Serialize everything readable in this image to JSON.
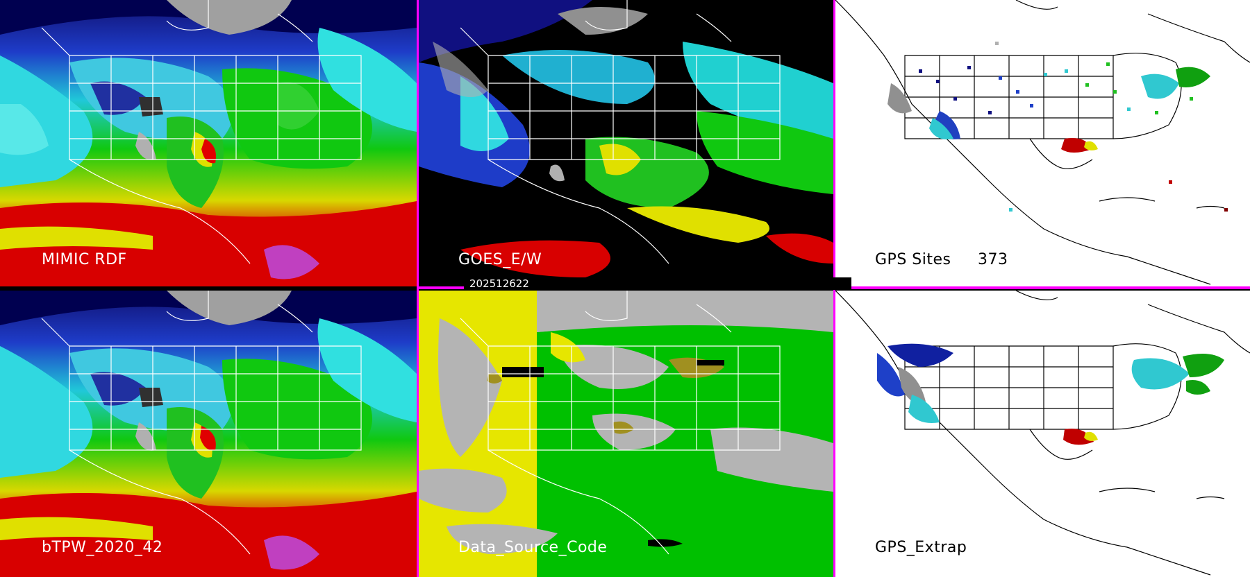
{
  "panels": {
    "p1": {
      "label": "MIMIC RDF"
    },
    "p2": {
      "label": "GOES_E/W"
    },
    "p3": {
      "label": "GPS Sites",
      "count": "373"
    },
    "p4": {
      "label": "bTPW_2020_42"
    },
    "p5": {
      "label": "Data_Source_Code"
    },
    "p6": {
      "label": "GPS_Extrap"
    }
  },
  "timestamp": "202512622",
  "colors": {
    "separator": "#ff00ff",
    "moisture_scale": [
      "#b0b0b0",
      "#00008b",
      "#1e3cff",
      "#00e5e5",
      "#00c800",
      "#e6e600",
      "#dc0000",
      "#c040c0"
    ],
    "data_source": {
      "gray": "#b4b4b4",
      "yellow": "#e6e600",
      "green": "#00c000",
      "olive": "#a09020"
    }
  }
}
